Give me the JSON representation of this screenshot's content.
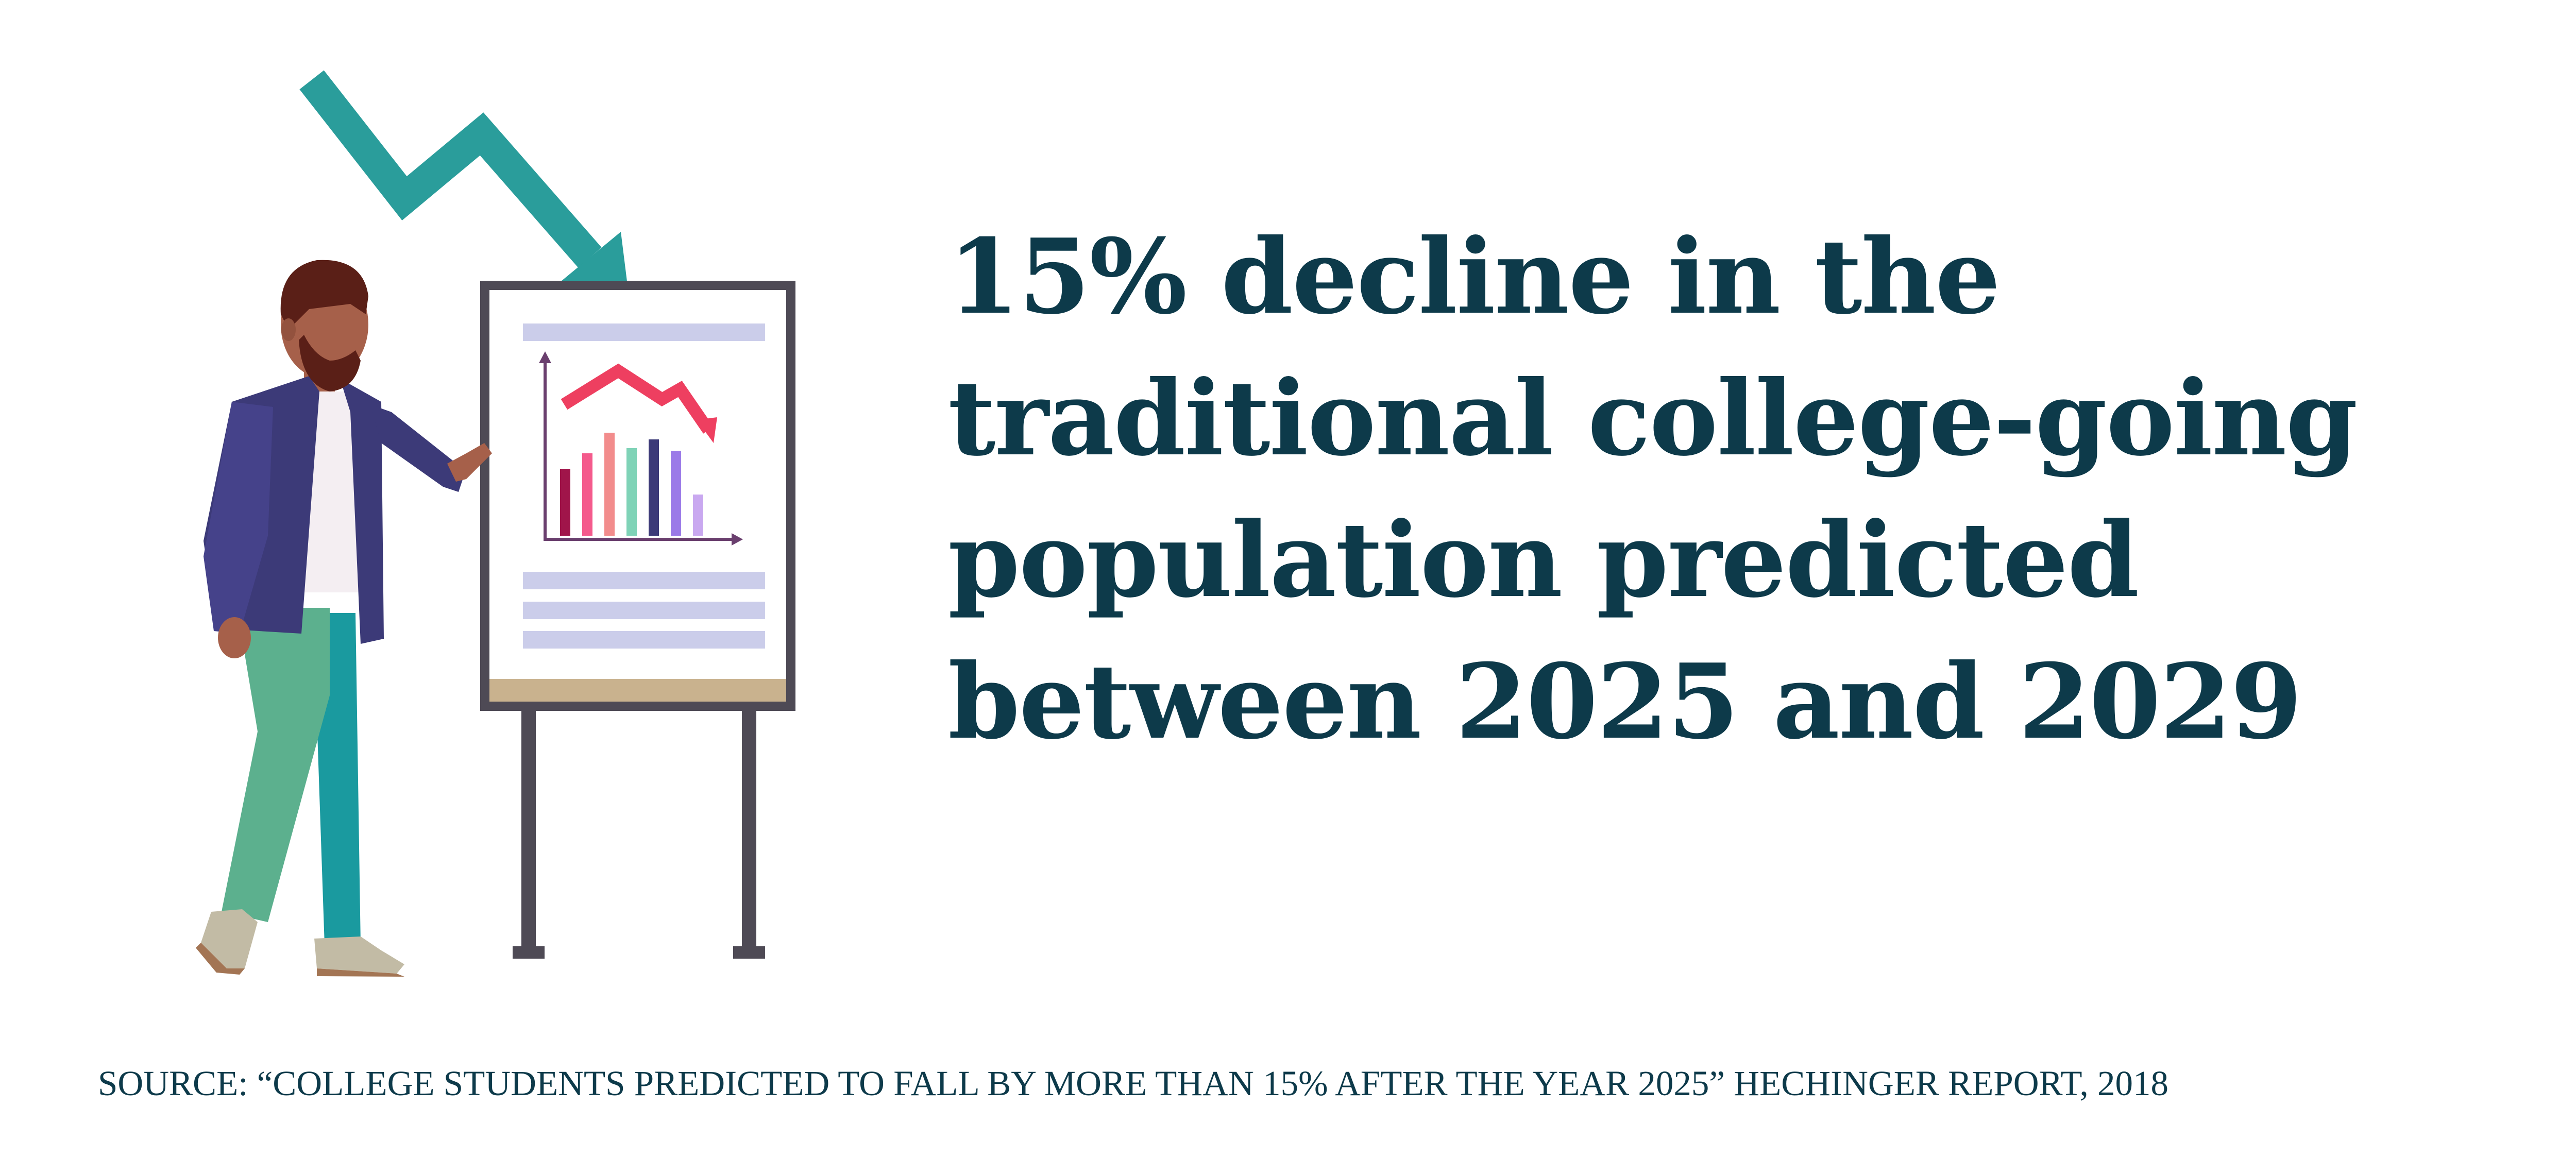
{
  "headline": {
    "lines": [
      "15% decline in the",
      "traditional college-going",
      "population predicted",
      "between 2025 and 2029"
    ]
  },
  "source": {
    "text": "SOURCE: “COLLEGE STUDENTS PREDICTED TO FALL BY MORE THAN 15% AFTER THE YEAR 2025” HECHINGER REPORT, 2018"
  },
  "colors": {
    "headline": "#0d3a4a",
    "arrow": "#2a9d9b",
    "easel_frame": "#4e4a55",
    "easel_tray": "#c9b28e",
    "placeholder_lines": "#cbcdea",
    "jacket": "#3c3a78",
    "pants": "#5cb08e",
    "skin": "#a6604a"
  },
  "icons": {
    "decline_arrow": "trend-down-arrow-icon",
    "presenter": "presenter-person-icon",
    "easel": "easel-board-icon",
    "mini_chart": "bar-chart-icon"
  }
}
